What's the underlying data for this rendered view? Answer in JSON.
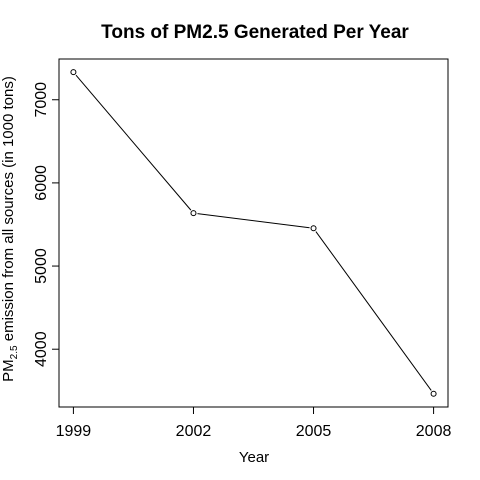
{
  "chart_data": {
    "type": "line",
    "title": "Tons of PM2.5 Generated Per Year",
    "xlabel": "Year",
    "ylabel": {
      "prefix": "PM",
      "subscript": "2.5",
      "suffix": " emission from all sources (in 1000 tons)"
    },
    "x": [
      1999,
      2002,
      2005,
      2008
    ],
    "series": [
      {
        "values": [
          7332,
          5636,
          5454,
          3465
        ]
      }
    ],
    "xticks": [
      1999,
      2002,
      2005,
      2008
    ],
    "yticks": [
      4000,
      5000,
      6000,
      7000
    ],
    "xlim": [
      1998.64,
      2008.36
    ],
    "ylim": [
      3305,
      7490
    ],
    "grid": false,
    "line_color": "#000000",
    "marker": "open-circle"
  }
}
